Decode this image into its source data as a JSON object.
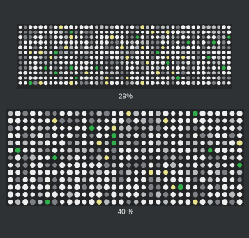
{
  "panels": [
    {
      "label": "29%"
    },
    {
      "label": "40 %"
    }
  ]
}
